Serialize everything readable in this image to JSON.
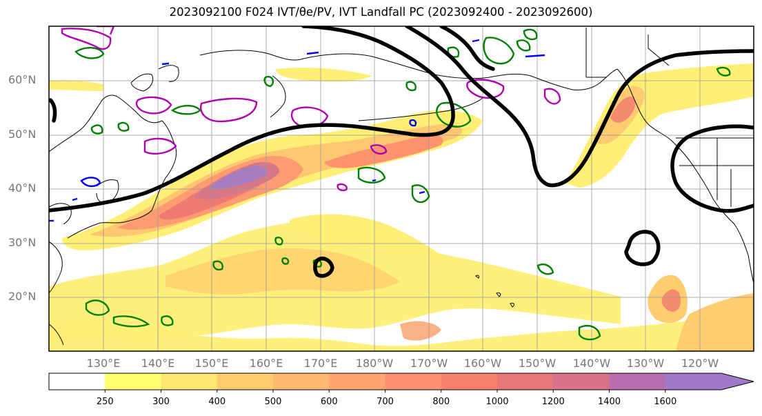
{
  "title": "2023092100 F024 IVT/θe/PV, IVT Landfall PC (2023092400 - 2023092600)",
  "map": {
    "lat_labels": [
      "60°N",
      "50°N",
      "40°N",
      "30°N",
      "20°N"
    ],
    "lon_labels": [
      "130°E",
      "140°E",
      "150°E",
      "160°E",
      "170°E",
      "180°W",
      "170°W",
      "160°W",
      "150°W",
      "140°W",
      "130°W",
      "120°W"
    ],
    "extent": {
      "lon_min": 120,
      "lon_max": 250,
      "lat_min": 10,
      "lat_max": 70
    },
    "colors": {
      "pc_contour": "#000000",
      "theta_e_contour": "#008000",
      "pv_contour": "#b000b0",
      "cold_contour": "#0000ff",
      "coast": "#000000",
      "grid": "#999999"
    }
  },
  "colorbar": {
    "levels": [
      "250",
      "300",
      "400",
      "500",
      "600",
      "700",
      "800",
      "1000",
      "1200",
      "1400",
      "1600"
    ],
    "colors": [
      "#ffffff",
      "#ffff70",
      "#ffe670",
      "#ffcc70",
      "#ffb870",
      "#ffa570",
      "#ff9170",
      "#f7806e",
      "#e87877",
      "#d8728a",
      "#b76fb0",
      "#a07ac8"
    ],
    "extend": "max"
  }
}
